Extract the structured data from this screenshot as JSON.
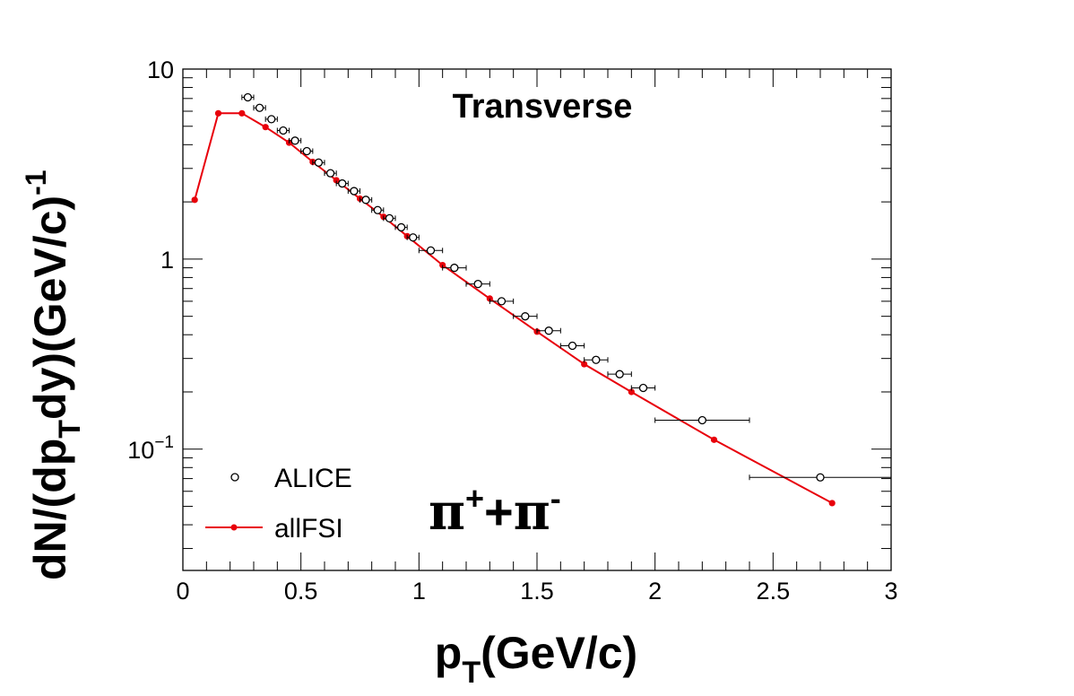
{
  "chart_data": {
    "type": "scatter",
    "annotation": "Transverse",
    "particle_label": {
      "base": "π",
      "plus": "+",
      "join": "+",
      "minus": "-"
    },
    "xaxis": {
      "label_main": "p",
      "label_sub": "T",
      "label_rest": "(GeV/c)",
      "range": [
        0,
        3
      ],
      "ticks": [
        "0",
        "0.5",
        "1",
        "1.5",
        "2",
        "2.5",
        "3"
      ]
    },
    "yaxis": {
      "label_a": "dN/(dp",
      "label_sub": "T",
      "label_b": "dy)(GeV/c)",
      "label_sup": "-1",
      "scale": "log",
      "range": [
        0.023,
        10
      ],
      "ticks": [
        {
          "value": 10,
          "label": "10"
        },
        {
          "value": 1,
          "label": "1"
        },
        {
          "value": 0.1,
          "label_base": "10",
          "label_exp": "−1"
        }
      ]
    },
    "legend": {
      "position": "bottom-left",
      "entries": [
        {
          "name": "ALICE",
          "marker": "open-circle"
        },
        {
          "name": "allFSI",
          "marker": "red-line-dot"
        }
      ]
    },
    "series": [
      {
        "name": "ALICE",
        "color": "#000000",
        "marker": "open-circle",
        "points": [
          {
            "x": 0.275,
            "y": 7.1,
            "xerr": 0.025
          },
          {
            "x": 0.325,
            "y": 6.25,
            "xerr": 0.025
          },
          {
            "x": 0.375,
            "y": 5.45,
            "xerr": 0.025
          },
          {
            "x": 0.425,
            "y": 4.75,
            "xerr": 0.025
          },
          {
            "x": 0.475,
            "y": 4.2,
            "xerr": 0.025
          },
          {
            "x": 0.525,
            "y": 3.7,
            "xerr": 0.025
          },
          {
            "x": 0.575,
            "y": 3.22,
            "xerr": 0.025
          },
          {
            "x": 0.625,
            "y": 2.83,
            "xerr": 0.025
          },
          {
            "x": 0.675,
            "y": 2.5,
            "xerr": 0.025
          },
          {
            "x": 0.725,
            "y": 2.28,
            "xerr": 0.025
          },
          {
            "x": 0.775,
            "y": 2.05,
            "xerr": 0.025
          },
          {
            "x": 0.825,
            "y": 1.81,
            "xerr": 0.025
          },
          {
            "x": 0.875,
            "y": 1.64,
            "xerr": 0.025
          },
          {
            "x": 0.925,
            "y": 1.47,
            "xerr": 0.025
          },
          {
            "x": 0.975,
            "y": 1.3,
            "xerr": 0.025
          },
          {
            "x": 1.05,
            "y": 1.11,
            "xerr": 0.05
          },
          {
            "x": 1.15,
            "y": 0.9,
            "xerr": 0.05
          },
          {
            "x": 1.25,
            "y": 0.74,
            "xerr": 0.05
          },
          {
            "x": 1.35,
            "y": 0.6,
            "xerr": 0.05
          },
          {
            "x": 1.45,
            "y": 0.5,
            "xerr": 0.05
          },
          {
            "x": 1.55,
            "y": 0.42,
            "xerr": 0.05
          },
          {
            "x": 1.65,
            "y": 0.35,
            "xerr": 0.05
          },
          {
            "x": 1.75,
            "y": 0.295,
            "xerr": 0.05
          },
          {
            "x": 1.85,
            "y": 0.248,
            "xerr": 0.05
          },
          {
            "x": 1.95,
            "y": 0.21,
            "xerr": 0.05
          },
          {
            "x": 2.2,
            "y": 0.142,
            "xerr": 0.2
          },
          {
            "x": 2.7,
            "y": 0.071,
            "xerr": 0.3
          }
        ]
      },
      {
        "name": "allFSI",
        "color": "#e8000b",
        "marker": "line-dot",
        "points": [
          {
            "x": 0.05,
            "y": 2.05
          },
          {
            "x": 0.15,
            "y": 5.85
          },
          {
            "x": 0.25,
            "y": 5.85
          },
          {
            "x": 0.35,
            "y": 4.95
          },
          {
            "x": 0.45,
            "y": 4.1
          },
          {
            "x": 0.55,
            "y": 3.25
          },
          {
            "x": 0.65,
            "y": 2.6
          },
          {
            "x": 0.75,
            "y": 2.08
          },
          {
            "x": 0.85,
            "y": 1.67
          },
          {
            "x": 0.95,
            "y": 1.32
          },
          {
            "x": 1.1,
            "y": 0.93
          },
          {
            "x": 1.3,
            "y": 0.62
          },
          {
            "x": 1.5,
            "y": 0.415
          },
          {
            "x": 1.7,
            "y": 0.28
          },
          {
            "x": 1.9,
            "y": 0.2
          },
          {
            "x": 2.25,
            "y": 0.112
          },
          {
            "x": 2.75,
            "y": 0.052
          }
        ]
      }
    ]
  }
}
